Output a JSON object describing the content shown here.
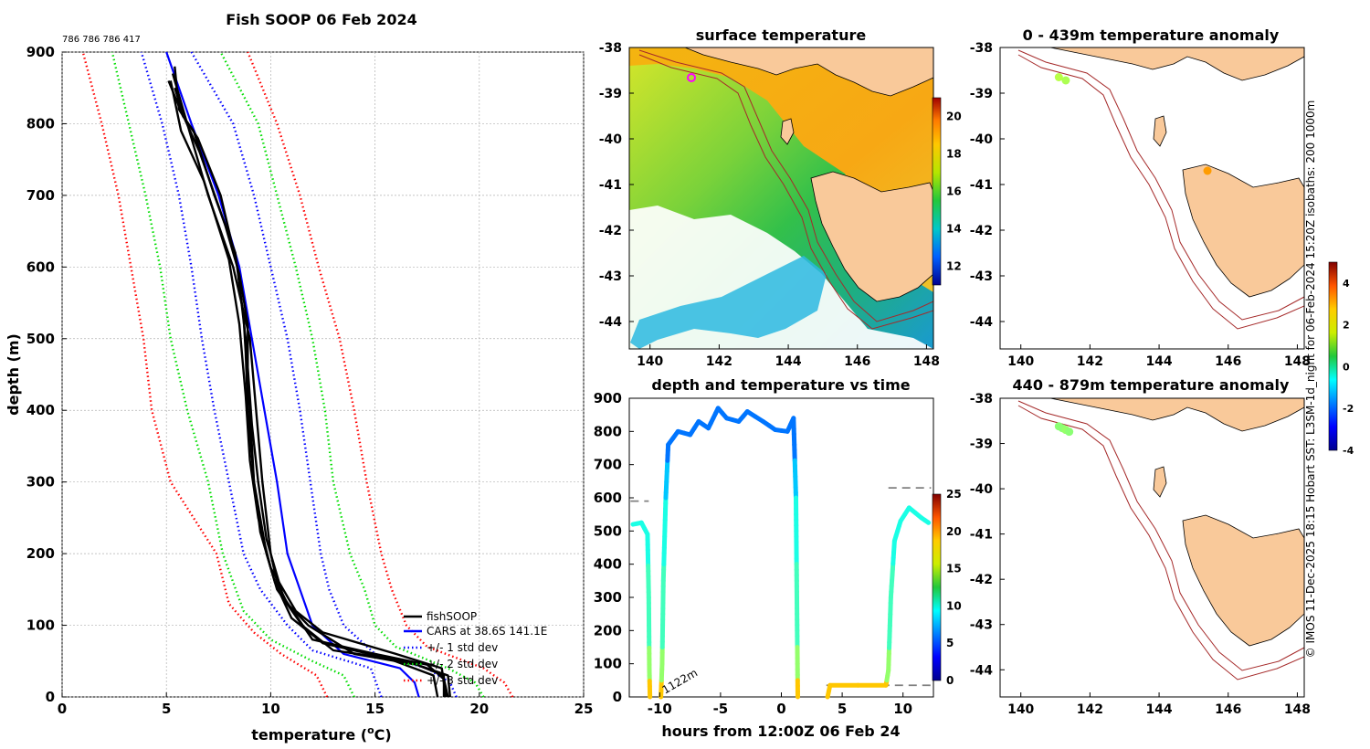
{
  "figure": {
    "side_note": "© IMOS 11-Dec-2025 18:15 Hobart SST: L3SM-1d_night for 06-Feb-2024 15:20Z isobaths: 200  1000m",
    "colors": {
      "fish": "#000000",
      "cars": "#0000ff",
      "sd1": "#0000ff",
      "sd2": "#00dd00",
      "sd3": "#ff0000",
      "land": "#f9c99a",
      "isobath": "#a52a2a",
      "dashed": "#808080"
    }
  },
  "chart_data": [
    {
      "id": "profile",
      "type": "line",
      "title": "Fish SOOP 06 Feb 2024",
      "subtitle": "786 786 786 417",
      "xlabel": "temperature (",
      "xlabel_sup": "o",
      "xlabel_end": "C)",
      "ylabel": "depth (m)",
      "xlim": [
        0,
        25
      ],
      "ylim": [
        900,
        0
      ],
      "xticks": [
        "0",
        "5",
        "10",
        "15",
        "20",
        "25"
      ],
      "yticks": [
        "0",
        "100",
        "200",
        "300",
        "400",
        "500",
        "600",
        "700",
        "800",
        "900"
      ],
      "legend": [
        "fishSOOP",
        "CARS at 38.6S 141.1E",
        "+/- 1 std dev",
        "+/- 2 std dev",
        "+/- 3 std dev"
      ],
      "series": [
        {
          "name": "CARS",
          "style": "cars",
          "points": [
            [
              17.1,
              0
            ],
            [
              16.9,
              20
            ],
            [
              16.2,
              40
            ],
            [
              13.5,
              60
            ],
            [
              12.0,
              100
            ],
            [
              11.4,
              150
            ],
            [
              10.8,
              200
            ],
            [
              10.3,
              300
            ],
            [
              9.7,
              400
            ],
            [
              9.1,
              500
            ],
            [
              8.5,
              600
            ],
            [
              7.5,
              700
            ],
            [
              6.2,
              800
            ],
            [
              5.0,
              900
            ]
          ]
        },
        {
          "name": "sd1_lo",
          "style": "sd1",
          "points": [
            [
              15.3,
              0
            ],
            [
              14.8,
              40
            ],
            [
              12.0,
              65
            ],
            [
              10.8,
              100
            ],
            [
              9.5,
              150
            ],
            [
              8.7,
              200
            ],
            [
              8.0,
              300
            ],
            [
              7.3,
              400
            ],
            [
              6.7,
              500
            ],
            [
              6.2,
              600
            ],
            [
              5.6,
              700
            ],
            [
              4.8,
              800
            ],
            [
              3.8,
              900
            ]
          ]
        },
        {
          "name": "sd1_hi",
          "style": "sd1",
          "points": [
            [
              18.9,
              0
            ],
            [
              18.6,
              20
            ],
            [
              17.5,
              40
            ],
            [
              15.0,
              60
            ],
            [
              13.5,
              100
            ],
            [
              12.8,
              150
            ],
            [
              12.4,
              200
            ],
            [
              11.9,
              300
            ],
            [
              11.4,
              400
            ],
            [
              10.8,
              500
            ],
            [
              10.0,
              600
            ],
            [
              9.2,
              700
            ],
            [
              8.2,
              800
            ],
            [
              6.2,
              900
            ]
          ]
        },
        {
          "name": "sd2_lo",
          "style": "sd2",
          "points": [
            [
              14.0,
              0
            ],
            [
              13.5,
              30
            ],
            [
              12.0,
              50
            ],
            [
              10.0,
              80
            ],
            [
              8.7,
              120
            ],
            [
              7.7,
              200
            ],
            [
              7.0,
              300
            ],
            [
              6.0,
              400
            ],
            [
              5.2,
              500
            ],
            [
              4.7,
              600
            ],
            [
              4.0,
              700
            ],
            [
              3.2,
              800
            ],
            [
              2.4,
              900
            ]
          ]
        },
        {
          "name": "sd2_hi",
          "style": "sd2",
          "points": [
            [
              20.2,
              0
            ],
            [
              19.8,
              20
            ],
            [
              18.5,
              40
            ],
            [
              16.0,
              70
            ],
            [
              15.0,
              100
            ],
            [
              14.5,
              150
            ],
            [
              13.8,
              200
            ],
            [
              13.0,
              300
            ],
            [
              12.6,
              400
            ],
            [
              12.0,
              500
            ],
            [
              11.2,
              600
            ],
            [
              10.3,
              700
            ],
            [
              9.4,
              800
            ],
            [
              7.6,
              900
            ]
          ]
        },
        {
          "name": "sd3_lo",
          "style": "sd3",
          "points": [
            [
              12.7,
              0
            ],
            [
              12.2,
              30
            ],
            [
              10.5,
              60
            ],
            [
              9.2,
              90
            ],
            [
              8.0,
              130
            ],
            [
              7.4,
              200
            ],
            [
              6.3,
              250
            ],
            [
              5.2,
              300
            ],
            [
              4.3,
              400
            ],
            [
              3.9,
              500
            ],
            [
              3.3,
              600
            ],
            [
              2.7,
              700
            ],
            [
              1.9,
              800
            ],
            [
              1.0,
              900
            ]
          ]
        },
        {
          "name": "sd3_hi",
          "style": "sd3",
          "points": [
            [
              21.6,
              0
            ],
            [
              21.2,
              20
            ],
            [
              20.2,
              40
            ],
            [
              17.5,
              70
            ],
            [
              16.5,
              100
            ],
            [
              15.8,
              150
            ],
            [
              15.3,
              200
            ],
            [
              14.6,
              300
            ],
            [
              14.0,
              400
            ],
            [
              13.3,
              500
            ],
            [
              12.3,
              600
            ],
            [
              11.4,
              700
            ],
            [
              10.3,
              800
            ],
            [
              8.9,
              900
            ]
          ]
        },
        {
          "name": "fish1",
          "style": "fish",
          "points": [
            [
              18.3,
              0
            ],
            [
              18.3,
              30
            ],
            [
              17.0,
              45
            ],
            [
              14.0,
              60
            ],
            [
              11.8,
              100
            ],
            [
              10.8,
              130
            ],
            [
              10.3,
              160
            ],
            [
              10.0,
              200
            ],
            [
              9.6,
              300
            ],
            [
              9.3,
              400
            ],
            [
              9.0,
              500
            ],
            [
              8.6,
              550
            ],
            [
              8.2,
              600
            ],
            [
              7.0,
              700
            ],
            [
              6.0,
              800
            ],
            [
              5.3,
              870
            ]
          ]
        },
        {
          "name": "fish2",
          "style": "fish",
          "points": [
            [
              18.6,
              0
            ],
            [
              18.5,
              30
            ],
            [
              16.5,
              50
            ],
            [
              13.0,
              65
            ],
            [
              11.5,
              100
            ],
            [
              10.3,
              150
            ],
            [
              9.8,
              200
            ],
            [
              9.2,
              300
            ],
            [
              9.0,
              400
            ],
            [
              8.8,
              500
            ],
            [
              8.4,
              600
            ],
            [
              7.6,
              700
            ],
            [
              6.5,
              780
            ],
            [
              5.6,
              820
            ],
            [
              5.4,
              880
            ]
          ]
        },
        {
          "name": "fish3",
          "style": "fish",
          "points": [
            [
              18.0,
              0
            ],
            [
              17.8,
              30
            ],
            [
              15.5,
              55
            ],
            [
              12.5,
              75
            ],
            [
              11.0,
              110
            ],
            [
              10.2,
              160
            ],
            [
              9.5,
              230
            ],
            [
              9.2,
              300
            ],
            [
              8.9,
              400
            ],
            [
              8.8,
              480
            ],
            [
              8.7,
              530
            ],
            [
              8.3,
              620
            ],
            [
              7.3,
              700
            ],
            [
              6.3,
              790
            ],
            [
              5.8,
              810
            ],
            [
              5.1,
              860
            ]
          ]
        },
        {
          "name": "fish4",
          "style": "fish",
          "points": [
            [
              18.4,
              0
            ],
            [
              18.2,
              40
            ],
            [
              16.0,
              60
            ],
            [
              12.5,
              90
            ],
            [
              11.2,
              120
            ],
            [
              10.0,
              180
            ],
            [
              9.4,
              250
            ],
            [
              9.0,
              330
            ],
            [
              8.8,
              420
            ],
            [
              8.5,
              520
            ],
            [
              8.0,
              610
            ],
            [
              6.8,
              720
            ],
            [
              5.7,
              790
            ],
            [
              5.2,
              860
            ]
          ]
        },
        {
          "name": "fish5",
          "style": "fish",
          "points": [
            [
              18.5,
              0
            ],
            [
              18.3,
              25
            ],
            [
              17.5,
              45
            ],
            [
              15.0,
              60
            ],
            [
              12.0,
              80
            ],
            [
              10.6,
              140
            ],
            [
              9.8,
              220
            ],
            [
              9.4,
              300
            ],
            [
              9.1,
              380
            ],
            [
              8.9,
              460
            ],
            [
              8.9,
              520
            ],
            [
              8.5,
              590
            ],
            [
              7.8,
              660
            ],
            [
              6.6,
              760
            ],
            [
              5.9,
              805
            ],
            [
              5.4,
              850
            ]
          ]
        }
      ]
    },
    {
      "id": "sst",
      "type": "heatmap",
      "title": "surface temperature",
      "xlim": [
        139.4,
        148.2
      ],
      "ylim": [
        -44.6,
        -38
      ],
      "xticks": [
        "140",
        "142",
        "144",
        "146",
        "148"
      ],
      "yticks": [
        "-38",
        "-39",
        "-40",
        "-41",
        "-42",
        "-43",
        "-44"
      ],
      "colorbar_ticks": [
        "12",
        "14",
        "16",
        "18",
        "20"
      ],
      "clim": [
        11,
        21
      ]
    },
    {
      "id": "timeseries",
      "type": "line",
      "title": "depth and temperature vs time",
      "xlabel": "hours from 12:00Z 06 Feb 24",
      "xlim": [
        -12.5,
        12.5
      ],
      "ylim": [
        900,
        0
      ],
      "xticks": [
        "-10",
        "-5",
        "0",
        "5",
        "10"
      ],
      "yticks": [
        "0",
        "100",
        "200",
        "300",
        "400",
        "500",
        "600",
        "700",
        "800",
        "900"
      ],
      "colorbar_ticks": [
        "0",
        "5",
        "10",
        "15",
        "20",
        "25"
      ],
      "clim": [
        0,
        25
      ],
      "bottom_label": "1122m",
      "dashes": [
        [
          -12.4,
          -10.9,
          590
        ],
        [
          3.7,
          12.3,
          35
        ],
        [
          8.8,
          12.3,
          630
        ]
      ]
    },
    {
      "id": "anom1",
      "type": "scatter",
      "title": "0 - 439m temperature anomaly",
      "xlim": [
        139.4,
        148.2
      ],
      "ylim": [
        -44.6,
        -38
      ],
      "xticks": [
        "140",
        "142",
        "144",
        "146",
        "148"
      ],
      "yticks": [
        "-38",
        "-39",
        "-40",
        "-41",
        "-42",
        "-43",
        "-44"
      ],
      "points": [
        [
          141.1,
          -38.65,
          1.0
        ],
        [
          141.3,
          -38.72,
          0.9
        ],
        [
          145.4,
          -40.7,
          2.5
        ]
      ]
    },
    {
      "id": "anom2",
      "type": "scatter",
      "title": "440 - 879m temperature anomaly",
      "xlim": [
        139.4,
        148.2
      ],
      "ylim": [
        -44.6,
        -38
      ],
      "xticks": [
        "140",
        "142",
        "144",
        "146",
        "148"
      ],
      "yticks": [
        "-38",
        "-39",
        "-40",
        "-41",
        "-42",
        "-43",
        "-44"
      ],
      "points": [
        [
          141.1,
          -38.62,
          0.6
        ],
        [
          141.2,
          -38.66,
          0.6
        ],
        [
          141.3,
          -38.7,
          0.7
        ],
        [
          141.4,
          -38.74,
          0.6
        ]
      ],
      "colorbar_ticks": [
        "4",
        "2",
        "0",
        "-2",
        "-4"
      ],
      "clim": [
        -4,
        5
      ]
    }
  ]
}
